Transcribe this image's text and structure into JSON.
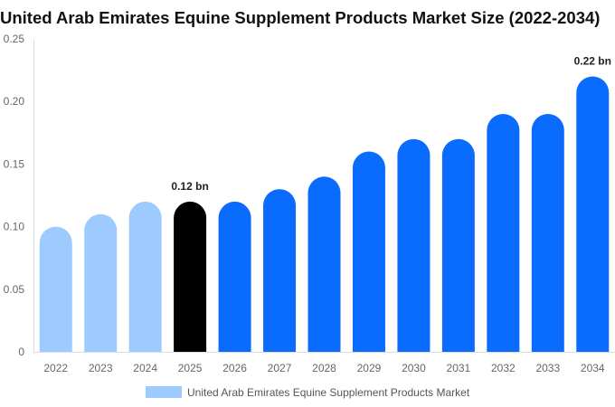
{
  "chart_data": {
    "type": "bar",
    "title": "United Arab Emirates Equine Supplement Products Market Size (2022-2034)",
    "categories": [
      "2022",
      "2023",
      "2024",
      "2025",
      "2026",
      "2027",
      "2028",
      "2029",
      "2030",
      "2031",
      "2032",
      "2033",
      "2034"
    ],
    "series": [
      {
        "name": "United Arab Emirates Equine Supplement Products Market",
        "values": [
          0.1,
          0.11,
          0.12,
          0.12,
          0.12,
          0.13,
          0.14,
          0.16,
          0.17,
          0.17,
          0.19,
          0.19,
          0.22
        ]
      }
    ],
    "data_labels": [
      {
        "category": "2025",
        "text": "0.12 bn"
      },
      {
        "category": "2034",
        "text": "0.22 bn"
      }
    ],
    "y_ticks": [
      "0",
      "0.05",
      "0.10",
      "0.15",
      "0.20",
      "0.25"
    ],
    "ylim": [
      0,
      0.25
    ],
    "grid": false,
    "legend_position": "bottom",
    "colors": {
      "historical": "#9ecbff",
      "base_year": "#000000",
      "forecast": "#0a6cff",
      "legend_swatch": "#9ecbff"
    },
    "historical_categories": [
      "2022",
      "2023",
      "2024"
    ],
    "base_year_category": "2025"
  }
}
